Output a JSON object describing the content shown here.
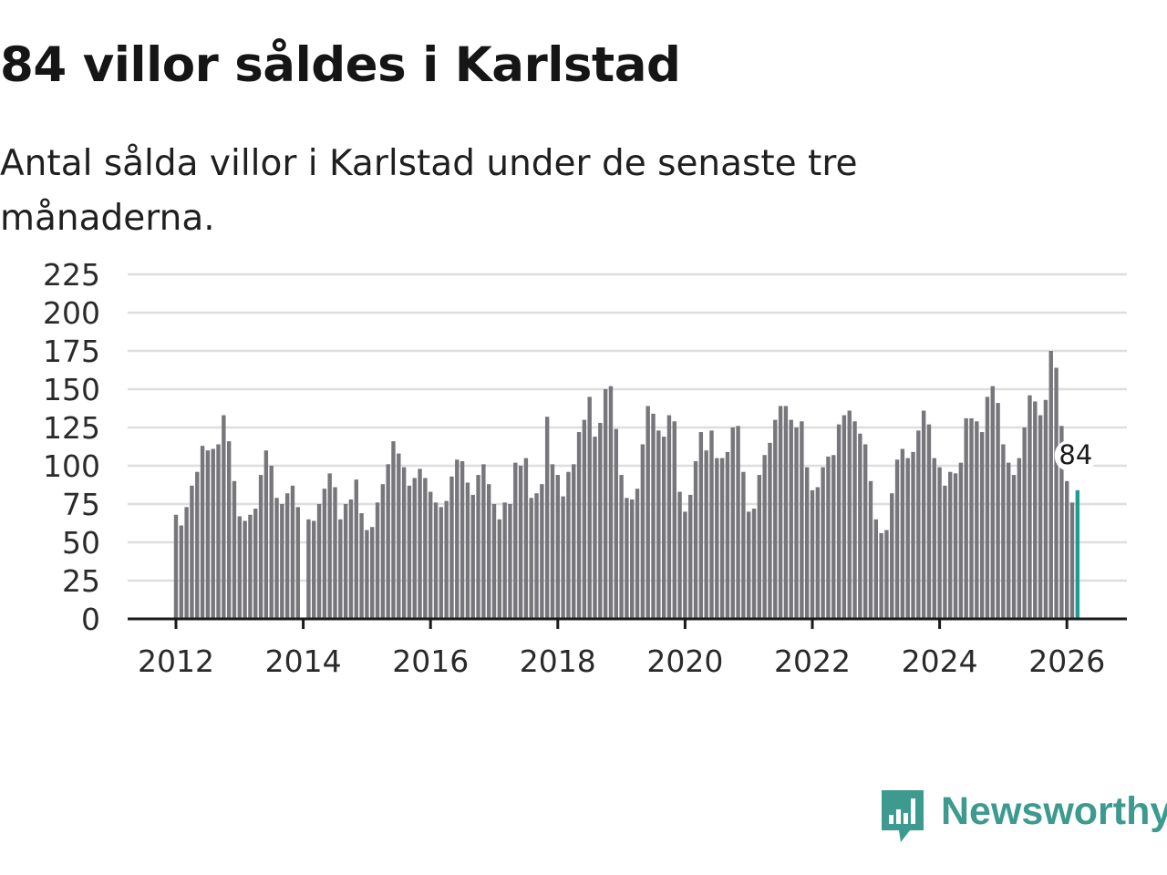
{
  "header": {
    "title": "84 villor såldes i Karlstad",
    "subtitle": "Antal sålda villor i Karlstad under de senaste tre månaderna."
  },
  "brand": {
    "name": "Newsworthy",
    "color": "#3d9a8f"
  },
  "colors": {
    "bar": "#76767b",
    "highlight": "#1b9e91",
    "grid": "#dedede"
  },
  "chart_data": {
    "type": "bar",
    "title": "84 villor såldes i Karlstad",
    "subtitle": "Antal sålda villor i Karlstad under de senaste tre månaderna.",
    "xlabel": "",
    "ylabel": "",
    "ylim": [
      0,
      225
    ],
    "yticks": [
      0,
      25,
      50,
      75,
      100,
      125,
      150,
      175,
      200,
      225
    ],
    "xlim": [
      2012.0,
      2026.5
    ],
    "xticks": [
      "2012",
      "2014",
      "2016",
      "2018",
      "2020",
      "2022",
      "2024",
      "2026"
    ],
    "grid": true,
    "legend": "none",
    "x_start": "2012-01",
    "x_step": "month",
    "series": [
      {
        "name": "Antal sålda villor",
        "values": [
          68,
          61,
          73,
          87,
          96,
          113,
          110,
          111,
          114,
          133,
          116,
          90,
          67,
          64,
          68,
          72,
          94,
          110,
          100,
          79,
          75,
          82,
          87,
          73,
          null,
          65,
          64,
          75,
          85,
          95,
          86,
          65,
          75,
          78,
          91,
          69,
          58,
          60,
          76,
          88,
          101,
          116,
          108,
          99,
          87,
          92,
          98,
          92,
          83,
          76,
          73,
          77,
          93,
          104,
          103,
          89,
          81,
          94,
          101,
          88,
          75,
          65,
          76,
          75,
          102,
          100,
          105,
          79,
          82,
          88,
          132,
          101,
          94,
          80,
          96,
          101,
          122,
          130,
          145,
          119,
          128,
          150,
          152,
          124,
          94,
          79,
          78,
          85,
          114,
          139,
          134,
          123,
          119,
          133,
          129,
          83,
          70,
          81,
          103,
          122,
          110,
          123,
          105,
          105,
          109,
          125,
          126,
          96,
          70,
          72,
          94,
          107,
          115,
          130,
          139,
          139,
          130,
          125,
          129,
          99,
          84,
          86,
          99,
          106,
          107,
          127,
          133,
          136,
          129,
          121,
          114,
          90,
          65,
          56,
          58,
          82,
          104,
          111,
          105,
          109,
          123,
          136,
          127,
          105,
          99,
          87,
          96,
          95,
          102,
          131,
          131,
          129,
          122,
          145,
          152,
          141,
          114,
          102,
          94,
          105,
          125,
          146,
          142,
          133,
          143,
          175,
          164,
          126,
          90,
          76,
          84
        ]
      }
    ],
    "annotations": [
      {
        "label": "84",
        "target": "last"
      }
    ]
  }
}
